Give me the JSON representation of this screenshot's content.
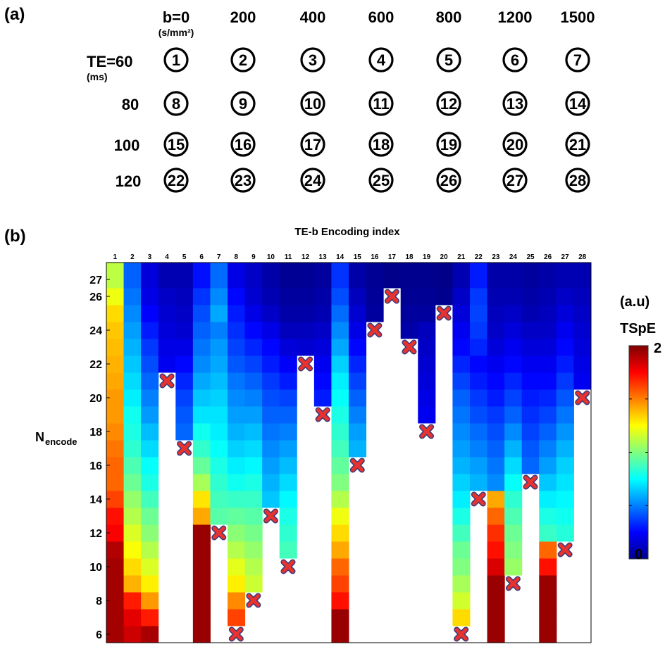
{
  "panel_a": {
    "label": "(a)",
    "b_header": "b=0",
    "b_unit": "(s/mm²)",
    "b_values": [
      "200",
      "400",
      "600",
      "800",
      "1200",
      "1500"
    ],
    "te_header": "TE=60",
    "te_unit": "(ms)",
    "te_values": [
      "80",
      "100",
      "120"
    ],
    "grid": [
      [
        "1",
        "2",
        "3",
        "4",
        "5",
        "6",
        "7"
      ],
      [
        "8",
        "9",
        "10",
        "11",
        "12",
        "13",
        "14"
      ],
      [
        "15",
        "16",
        "17",
        "18",
        "19",
        "20",
        "21"
      ],
      [
        "22",
        "23",
        "24",
        "25",
        "26",
        "27",
        "28"
      ]
    ]
  },
  "panel_b": {
    "label": "(b)",
    "colorbar": {
      "unit": "(a.u)",
      "name": "TSpE",
      "max_label": "2",
      "min_label": "0",
      "min": 0,
      "max": 2
    }
  },
  "chart_data": {
    "type": "heatmap",
    "title": "TE-b Encoding index",
    "xlabel": "TE-b Encoding index",
    "ylabel_main": "N",
    "ylabel_sub": "encode",
    "x_categories": [
      "1",
      "2",
      "3",
      "4",
      "5",
      "6",
      "7",
      "8",
      "9",
      "10",
      "11",
      "12",
      "13",
      "14",
      "15",
      "16",
      "17",
      "18",
      "19",
      "20",
      "21",
      "22",
      "23",
      "24",
      "25",
      "26",
      "27",
      "28"
    ],
    "y_tick_labels": [
      "6",
      "8",
      "10",
      "12",
      "14",
      "16",
      "18",
      "20",
      "22",
      "24",
      "26",
      "27"
    ],
    "y_tick_values": [
      6,
      8,
      10,
      12,
      14,
      16,
      18,
      20,
      22,
      24,
      26,
      27
    ],
    "y_range": [
      6,
      27
    ],
    "colorbar_range": [
      0,
      2
    ],
    "cell_values_note": "Approximate TSpE per encoding index; each list starts at 'start_n' and increases by 1 encoding per value; cells outside the listed range are blank.",
    "columns": [
      {
        "index": "1",
        "start_n": 6,
        "values": [
          1.93,
          1.93,
          1.93,
          1.93,
          1.93,
          1.9,
          1.76,
          1.72,
          1.62,
          1.55,
          1.55,
          1.52,
          1.48,
          1.45,
          1.45,
          1.42,
          1.4,
          1.38,
          1.36,
          1.32,
          1.22,
          1.12
        ]
      },
      {
        "index": "2",
        "start_n": 6,
        "values": [
          1.85,
          1.8,
          1.7,
          1.4,
          1.32,
          1.24,
          1.18,
          1.1,
          1.04,
          0.96,
          0.9,
          0.84,
          0.8,
          0.78,
          0.72,
          0.68,
          0.64,
          0.6,
          0.56,
          0.52,
          0.48,
          0.44
        ]
      },
      {
        "index": "3",
        "start_n": 6,
        "values": [
          1.92,
          1.7,
          1.45,
          1.28,
          1.18,
          1.1,
          1.02,
          0.96,
          0.88,
          0.8,
          0.76,
          0.68,
          0.62,
          0.55,
          0.5,
          0.45,
          0.4,
          0.36,
          0.3,
          0.25,
          0.2,
          0.18
        ]
      },
      {
        "index": "4",
        "start_n": 22,
        "values": [
          0.22,
          0.2,
          0.18,
          0.16,
          0.14,
          0.1
        ]
      },
      {
        "index": "5",
        "start_n": 18,
        "values": [
          0.45,
          0.42,
          0.38,
          0.32,
          0.26,
          0.2,
          0.16,
          0.14,
          0.12,
          0.1
        ]
      },
      {
        "index": "6",
        "start_n": 6,
        "values": [
          1.95,
          1.95,
          1.95,
          1.95,
          1.95,
          1.95,
          1.95,
          1.42,
          1.3,
          1.08,
          0.95,
          0.85,
          0.78,
          0.7,
          0.64,
          0.58,
          0.52,
          0.48,
          0.44,
          0.4,
          0.35,
          0.28
        ]
      },
      {
        "index": "7",
        "start_n": 13,
        "values": [
          0.92,
          0.88,
          0.84,
          0.8,
          0.76,
          0.72,
          0.7,
          0.66,
          0.62,
          0.58,
          0.55,
          0.5,
          0.58,
          0.52,
          0.46
        ]
      },
      {
        "index": "8",
        "start_n": 7,
        "values": [
          1.62,
          1.48,
          1.28,
          1.2,
          1.1,
          1.02,
          0.94,
          0.86,
          0.78,
          0.72,
          0.66,
          0.6,
          0.56,
          0.52,
          0.48,
          0.42,
          0.38,
          0.34,
          0.3,
          0.26,
          0.2
        ]
      },
      {
        "index": "9",
        "start_n": 9,
        "values": [
          1.15,
          1.1,
          1.04,
          0.98,
          0.92,
          0.86,
          0.8,
          0.74,
          0.68,
          0.62,
          0.56,
          0.5,
          0.44,
          0.38,
          0.32,
          0.26,
          0.2,
          0.16,
          0.14
        ]
      },
      {
        "index": "10",
        "start_n": 14,
        "values": [
          0.64,
          0.6,
          0.56,
          0.52,
          0.48,
          0.44,
          0.4,
          0.36,
          0.3,
          0.26,
          0.2,
          0.14,
          0.1,
          0.08
        ]
      },
      {
        "index": "11",
        "start_n": 11,
        "values": [
          0.88,
          0.84,
          0.8,
          0.74,
          0.68,
          0.62,
          0.56,
          0.5,
          0.44,
          0.38,
          0.3,
          0.24,
          0.18,
          0.12,
          0.08,
          0.06,
          0.04
        ]
      },
      {
        "index": "12",
        "start_n": 23,
        "values": [
          0.16,
          0.12,
          0.08,
          0.06,
          0.04
        ]
      },
      {
        "index": "13",
        "start_n": 20,
        "values": [
          0.3,
          0.26,
          0.22,
          0.18,
          0.14,
          0.1,
          0.08,
          0.06
        ]
      },
      {
        "index": "14",
        "start_n": 6,
        "values": [
          1.95,
          1.95,
          1.72,
          1.62,
          1.55,
          1.42,
          1.32,
          1.22,
          1.1,
          1.0,
          0.94,
          0.88,
          0.84,
          0.8,
          0.76,
          0.72,
          0.66,
          0.58,
          0.52,
          0.46,
          0.4,
          0.35
        ]
      },
      {
        "index": "15",
        "start_n": 17,
        "values": [
          0.6,
          0.56,
          0.5,
          0.44,
          0.38,
          0.32,
          0.26,
          0.2,
          0.16,
          0.12,
          0.08
        ]
      },
      {
        "index": "16",
        "start_n": 25,
        "values": [
          0.06,
          0.05,
          0.04
        ]
      },
      {
        "index": "17",
        "start_n": 27,
        "values": [
          0.02
        ]
      },
      {
        "index": "18",
        "start_n": 24,
        "values": [
          0.08,
          0.06,
          0.04,
          0.03
        ]
      },
      {
        "index": "19",
        "start_n": 19,
        "values": [
          0.22,
          0.2,
          0.18,
          0.16,
          0.14,
          0.12,
          0.06,
          0.04,
          0.03
        ]
      },
      {
        "index": "20",
        "start_n": 26,
        "values": [
          0.03,
          0.02
        ]
      },
      {
        "index": "21",
        "start_n": 7,
        "values": [
          1.32,
          1.16,
          1.08,
          1.0,
          0.96,
          0.88,
          0.8,
          0.72,
          0.66,
          0.6,
          0.56,
          0.52,
          0.48,
          0.44,
          0.38,
          0.32,
          0.26,
          0.22,
          0.18,
          0.14,
          0.1
        ]
      },
      {
        "index": "22",
        "start_n": 15,
        "values": [
          0.6,
          0.56,
          0.5,
          0.46,
          0.4,
          0.36,
          0.3,
          0.26,
          0.32,
          0.36,
          0.38,
          0.36,
          0.3
        ]
      },
      {
        "index": "23",
        "start_n": 6,
        "values": [
          1.95,
          1.95,
          1.95,
          1.95,
          1.82,
          1.72,
          1.66,
          1.55,
          1.42,
          0.52,
          0.48,
          0.44,
          0.4,
          0.36,
          0.3,
          0.26,
          0.22,
          0.18,
          0.14,
          0.12,
          0.1,
          0.08
        ]
      },
      {
        "index": "24",
        "start_n": 10,
        "values": [
          1.05,
          1.0,
          0.96,
          0.9,
          0.84,
          0.76,
          0.68,
          0.6,
          0.52,
          0.44,
          0.38,
          0.32,
          0.26,
          0.22,
          0.18,
          0.14,
          0.1,
          0.08
        ]
      },
      {
        "index": "25",
        "start_n": 16,
        "values": [
          0.45,
          0.42,
          0.38,
          0.34,
          0.3,
          0.26,
          0.22,
          0.18,
          0.14,
          0.1,
          0.08,
          0.06
        ]
      },
      {
        "index": "26",
        "start_n": 6,
        "values": [
          1.95,
          1.95,
          1.95,
          1.95,
          1.72,
          1.55,
          0.86,
          0.8,
          0.72,
          0.64,
          0.56,
          0.5,
          0.44,
          0.38,
          0.32,
          0.26,
          0.22,
          0.18,
          0.14,
          0.12,
          0.1,
          0.08
        ]
      },
      {
        "index": "27",
        "start_n": 12,
        "values": [
          0.82,
          0.78,
          0.74,
          0.7,
          0.66,
          0.6,
          0.54,
          0.48,
          0.42,
          0.36,
          0.3,
          0.26,
          0.22,
          0.18,
          0.14,
          0.1
        ]
      },
      {
        "index": "28",
        "start_n": 21,
        "values": [
          0.22,
          0.2,
          0.18,
          0.16,
          0.14,
          0.12,
          0.1
        ]
      }
    ],
    "excluded_markers": [
      {
        "index": "4",
        "n": 21
      },
      {
        "index": "5",
        "n": 17
      },
      {
        "index": "7",
        "n": 12
      },
      {
        "index": "8",
        "n": 6
      },
      {
        "index": "9",
        "n": 8
      },
      {
        "index": "10",
        "n": 13
      },
      {
        "index": "11",
        "n": 10
      },
      {
        "index": "12",
        "n": 22
      },
      {
        "index": "13",
        "n": 19
      },
      {
        "index": "15",
        "n": 16
      },
      {
        "index": "16",
        "n": 24
      },
      {
        "index": "17",
        "n": 26
      },
      {
        "index": "18",
        "n": 23
      },
      {
        "index": "19",
        "n": 18
      },
      {
        "index": "20",
        "n": 25
      },
      {
        "index": "21",
        "n": 6
      },
      {
        "index": "22",
        "n": 14
      },
      {
        "index": "24",
        "n": 9
      },
      {
        "index": "25",
        "n": 15
      },
      {
        "index": "27",
        "n": 11
      },
      {
        "index": "28",
        "n": 20
      }
    ]
  }
}
